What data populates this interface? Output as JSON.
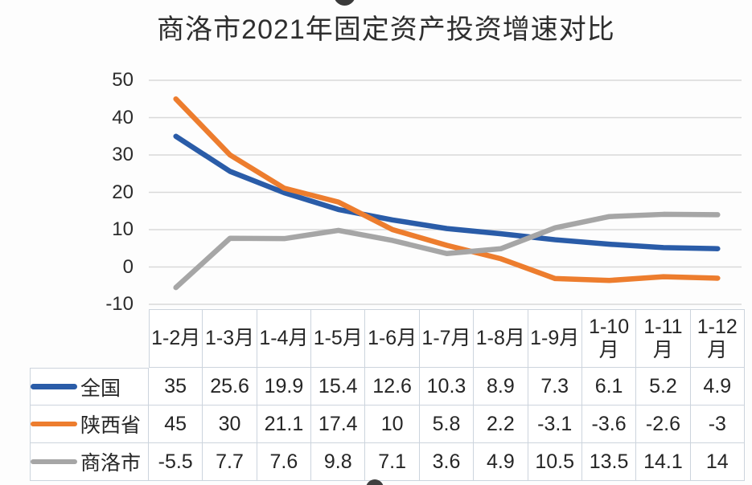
{
  "title": "商洛市2021年固定资产投资增速对比",
  "colors": {
    "national_blue": "#2a5ca8",
    "shaanxi_orange": "#ed7d2e",
    "shangluo_gray": "#a6a6a6",
    "gridline": "#d9d9d9",
    "table_border": "#ccd4dd",
    "text": "#262626"
  },
  "chart_data": {
    "type": "line",
    "title": "商洛市2021年固定资产投资增速对比",
    "categories": [
      "1-2月",
      "1-3月",
      "1-4月",
      "1-5月",
      "1-6月",
      "1-7月",
      "1-8月",
      "1-9月",
      "1-10月",
      "1-11月",
      "1-12月"
    ],
    "categories_display": [
      "1-2月",
      "1-3月",
      "1-4月",
      "1-5月",
      "1-6月",
      "1-7月",
      "1-8月",
      "1-9月",
      "1-10\n月",
      "1-11\n月",
      "1-12\n月"
    ],
    "series": [
      {
        "name": "全国",
        "color": "#2a5ca8",
        "values": [
          35,
          25.6,
          19.9,
          15.4,
          12.6,
          10.3,
          8.9,
          7.3,
          6.1,
          5.2,
          4.9
        ]
      },
      {
        "name": "陕西省",
        "color": "#ed7d2e",
        "values": [
          45,
          30,
          21.1,
          17.4,
          10,
          5.8,
          2.2,
          -3.1,
          -3.6,
          -2.6,
          -3
        ]
      },
      {
        "name": "商洛市",
        "color": "#a6a6a6",
        "values": [
          -5.5,
          7.7,
          7.6,
          9.8,
          7.1,
          3.6,
          4.9,
          10.5,
          13.5,
          14.1,
          14
        ]
      }
    ],
    "yticks": [
      50,
      40,
      30,
      20,
      10,
      0,
      -10
    ],
    "ylim": [
      -10,
      50
    ],
    "xlabel": "",
    "ylabel": "",
    "grid": true,
    "legend_position": "table-left"
  }
}
